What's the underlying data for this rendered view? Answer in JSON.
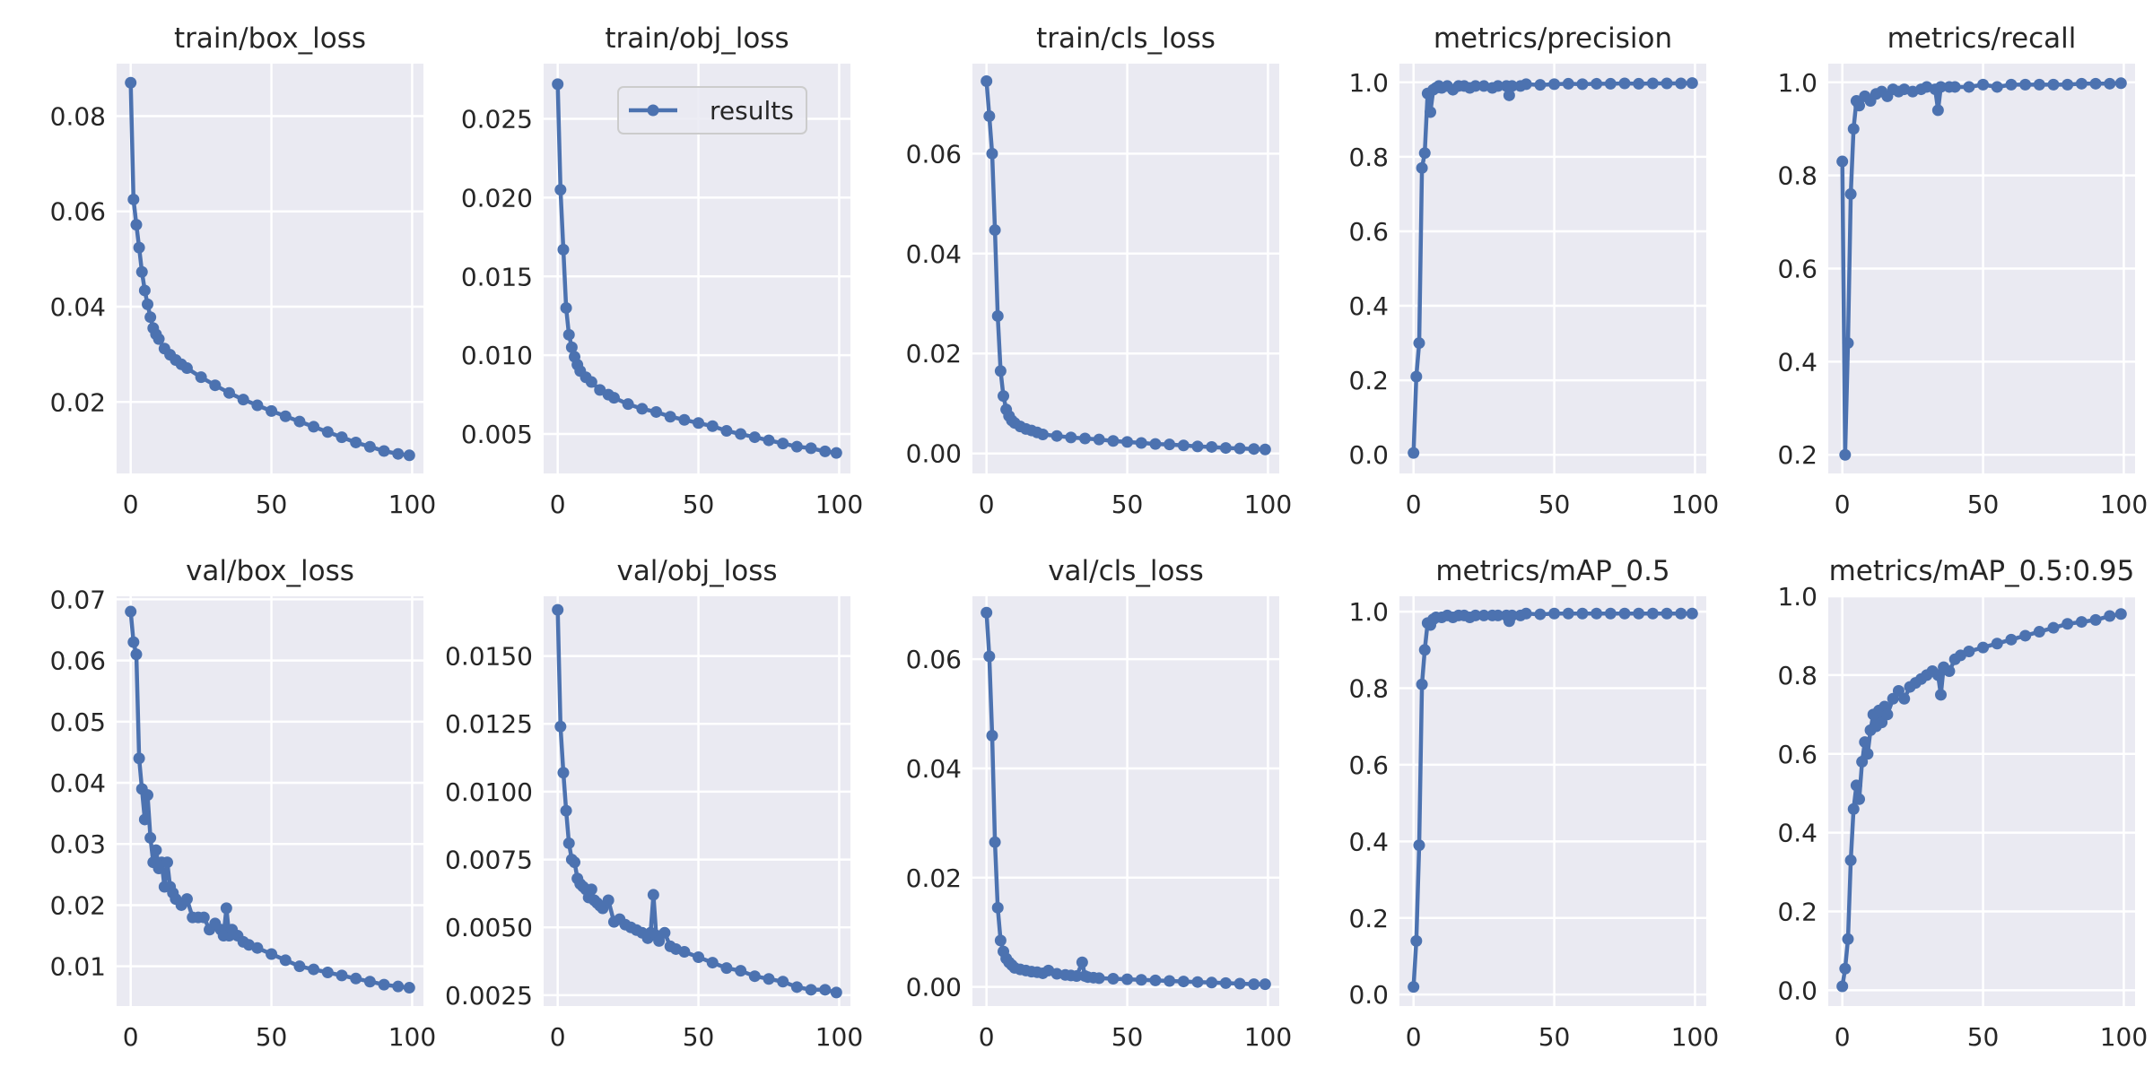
{
  "style": {
    "line_color": "#4c72b0",
    "panel_bg": "#eaeaf2",
    "grid_color": "#ffffff",
    "text_color": "#262626"
  },
  "legend": {
    "label": "results",
    "panel": 1
  },
  "chart_data": [
    {
      "type": "line",
      "title": "train/box_loss",
      "xlim": [
        -5,
        104
      ],
      "ylim": [
        0.005,
        0.091
      ],
      "xticks": [
        0,
        50,
        100
      ],
      "yticks": [
        0.02,
        0.04,
        0.06,
        0.08
      ],
      "ytick_labels": [
        "0.02",
        "0.04",
        "0.06",
        "0.08"
      ],
      "grid": true,
      "series": [
        {
          "label": "results",
          "x": [
            0,
            1,
            2,
            3,
            4,
            5,
            6,
            7,
            8,
            9,
            10,
            12,
            14,
            16,
            18,
            20,
            25,
            30,
            35,
            40,
            45,
            50,
            55,
            60,
            65,
            70,
            75,
            80,
            85,
            90,
            95,
            99
          ],
          "y": [
            0.087,
            0.0625,
            0.0572,
            0.0524,
            0.0473,
            0.0434,
            0.0405,
            0.0378,
            0.0355,
            0.0342,
            0.0332,
            0.0312,
            0.0299,
            0.0288,
            0.0279,
            0.0271,
            0.0252,
            0.0235,
            0.0219,
            0.0205,
            0.0193,
            0.0181,
            0.017,
            0.0159,
            0.0148,
            0.0137,
            0.0126,
            0.0115,
            0.0106,
            0.0097,
            0.0091,
            0.0088
          ]
        }
      ]
    },
    {
      "type": "line",
      "title": "train/obj_loss",
      "xlim": [
        -5,
        104
      ],
      "ylim": [
        0.0025,
        0.0285
      ],
      "xticks": [
        0,
        50,
        100
      ],
      "yticks": [
        0.005,
        0.01,
        0.015,
        0.02,
        0.025
      ],
      "ytick_labels": [
        "0.005",
        "0.010",
        "0.015",
        "0.020",
        "0.025"
      ],
      "grid": true,
      "series": [
        {
          "label": "results",
          "x": [
            0,
            1,
            2,
            3,
            4,
            5,
            6,
            7,
            8,
            10,
            12,
            15,
            18,
            20,
            25,
            30,
            35,
            40,
            45,
            50,
            55,
            60,
            65,
            70,
            75,
            80,
            85,
            90,
            95,
            99
          ],
          "y": [
            0.0272,
            0.0205,
            0.0167,
            0.013,
            0.0113,
            0.0105,
            0.0099,
            0.0094,
            0.009,
            0.0086,
            0.0083,
            0.0078,
            0.0075,
            0.0073,
            0.0069,
            0.0066,
            0.0064,
            0.0061,
            0.0059,
            0.0057,
            0.0055,
            0.0052,
            0.005,
            0.0048,
            0.0046,
            0.0044,
            0.0042,
            0.0041,
            0.0039,
            0.0038
          ]
        }
      ]
    },
    {
      "type": "line",
      "title": "train/cls_loss",
      "xlim": [
        -5,
        104
      ],
      "ylim": [
        -0.004,
        0.078
      ],
      "xticks": [
        0,
        50,
        100
      ],
      "yticks": [
        0.0,
        0.02,
        0.04,
        0.06
      ],
      "ytick_labels": [
        "0.00",
        "0.02",
        "0.04",
        "0.06"
      ],
      "grid": true,
      "series": [
        {
          "label": "results",
          "x": [
            0,
            1,
            2,
            3,
            4,
            5,
            6,
            7,
            8,
            9,
            10,
            12,
            14,
            16,
            18,
            20,
            25,
            30,
            35,
            40,
            45,
            50,
            55,
            60,
            65,
            70,
            75,
            80,
            85,
            90,
            95,
            99
          ],
          "y": [
            0.0745,
            0.0675,
            0.06,
            0.0447,
            0.0275,
            0.0165,
            0.0115,
            0.0088,
            0.0075,
            0.0066,
            0.0061,
            0.0054,
            0.0049,
            0.0046,
            0.0042,
            0.0038,
            0.0035,
            0.0032,
            0.003,
            0.0028,
            0.0025,
            0.0023,
            0.0021,
            0.0019,
            0.0018,
            0.0016,
            0.0014,
            0.0013,
            0.0011,
            0.001,
            0.0009,
            0.0008
          ]
        }
      ]
    },
    {
      "type": "line",
      "title": "metrics/precision",
      "xlim": [
        -5,
        104
      ],
      "ylim": [
        -0.05,
        1.05
      ],
      "xticks": [
        0,
        50,
        100
      ],
      "yticks": [
        0.0,
        0.2,
        0.4,
        0.6,
        0.8,
        1.0
      ],
      "ytick_labels": [
        "0.0",
        "0.2",
        "0.4",
        "0.6",
        "0.8",
        "1.0"
      ],
      "grid": true,
      "series": [
        {
          "label": "results",
          "x": [
            0,
            1,
            2,
            3,
            4,
            5,
            6,
            7,
            8,
            9,
            10,
            12,
            14,
            16,
            18,
            20,
            22,
            25,
            28,
            30,
            33,
            34,
            35,
            38,
            40,
            45,
            50,
            55,
            60,
            65,
            70,
            75,
            80,
            85,
            90,
            95,
            99
          ],
          "y": [
            0.005,
            0.21,
            0.3,
            0.77,
            0.81,
            0.97,
            0.92,
            0.98,
            0.985,
            0.99,
            0.985,
            0.99,
            0.98,
            0.99,
            0.99,
            0.985,
            0.99,
            0.99,
            0.985,
            0.99,
            0.99,
            0.965,
            0.99,
            0.99,
            0.995,
            0.993,
            0.995,
            0.996,
            0.995,
            0.996,
            0.996,
            0.997,
            0.996,
            0.997,
            0.997,
            0.997,
            0.998
          ]
        }
      ]
    },
    {
      "type": "line",
      "title": "metrics/recall",
      "xlim": [
        -5,
        104
      ],
      "ylim": [
        0.16,
        1.04
      ],
      "xticks": [
        0,
        50,
        100
      ],
      "yticks": [
        0.2,
        0.4,
        0.6,
        0.8,
        1.0
      ],
      "ytick_labels": [
        "0.2",
        "0.4",
        "0.6",
        "0.8",
        "1.0"
      ],
      "grid": true,
      "series": [
        {
          "label": "results",
          "x": [
            0,
            1,
            2,
            3,
            4,
            5,
            6,
            8,
            10,
            12,
            14,
            16,
            18,
            20,
            22,
            25,
            28,
            30,
            33,
            34,
            35,
            38,
            40,
            45,
            50,
            55,
            60,
            65,
            70,
            75,
            80,
            85,
            90,
            95,
            99
          ],
          "y": [
            0.83,
            0.2,
            0.44,
            0.76,
            0.9,
            0.96,
            0.95,
            0.97,
            0.96,
            0.975,
            0.98,
            0.97,
            0.985,
            0.98,
            0.985,
            0.98,
            0.985,
            0.99,
            0.985,
            0.94,
            0.99,
            0.99,
            0.99,
            0.99,
            0.995,
            0.99,
            0.995,
            0.995,
            0.995,
            0.995,
            0.995,
            0.997,
            0.997,
            0.997,
            0.998
          ]
        }
      ]
    },
    {
      "type": "line",
      "title": "val/box_loss",
      "xlim": [
        -5,
        104
      ],
      "ylim": [
        0.0035,
        0.0705
      ],
      "xticks": [
        0,
        50,
        100
      ],
      "yticks": [
        0.01,
        0.02,
        0.03,
        0.04,
        0.05,
        0.06,
        0.07
      ],
      "ytick_labels": [
        "0.01",
        "0.02",
        "0.03",
        "0.04",
        "0.05",
        "0.06",
        "0.07"
      ],
      "grid": true,
      "series": [
        {
          "label": "results",
          "x": [
            0,
            1,
            2,
            3,
            4,
            5,
            6,
            7,
            8,
            9,
            10,
            11,
            12,
            13,
            14,
            15,
            16,
            18,
            20,
            22,
            24,
            26,
            28,
            30,
            32,
            33,
            34,
            35,
            36,
            38,
            40,
            42,
            45,
            50,
            55,
            60,
            65,
            70,
            75,
            80,
            85,
            90,
            95,
            99
          ],
          "y": [
            0.068,
            0.063,
            0.061,
            0.044,
            0.039,
            0.034,
            0.038,
            0.031,
            0.027,
            0.029,
            0.026,
            0.027,
            0.023,
            0.027,
            0.023,
            0.022,
            0.021,
            0.02,
            0.021,
            0.018,
            0.018,
            0.018,
            0.016,
            0.017,
            0.016,
            0.015,
            0.0195,
            0.015,
            0.016,
            0.015,
            0.014,
            0.0135,
            0.013,
            0.012,
            0.011,
            0.01,
            0.0095,
            0.009,
            0.0085,
            0.008,
            0.0075,
            0.007,
            0.0067,
            0.0065
          ]
        }
      ]
    },
    {
      "type": "line",
      "title": "val/obj_loss",
      "xlim": [
        -5,
        104
      ],
      "ylim": [
        0.0021,
        0.0172
      ],
      "xticks": [
        0,
        50,
        100
      ],
      "yticks": [
        0.0025,
        0.005,
        0.0075,
        0.01,
        0.0125,
        0.015
      ],
      "ytick_labels": [
        "0.0025",
        "0.0050",
        "0.0075",
        "0.0100",
        "0.0125",
        "0.0150"
      ],
      "grid": true,
      "series": [
        {
          "label": "results",
          "x": [
            0,
            1,
            2,
            3,
            4,
            5,
            6,
            7,
            8,
            9,
            10,
            11,
            12,
            13,
            14,
            15,
            16,
            18,
            20,
            22,
            24,
            26,
            28,
            30,
            32,
            33,
            34,
            35,
            36,
            38,
            40,
            42,
            45,
            50,
            55,
            60,
            65,
            70,
            75,
            80,
            85,
            90,
            95,
            99
          ],
          "y": [
            0.0167,
            0.0124,
            0.0107,
            0.0093,
            0.0081,
            0.0075,
            0.0074,
            0.0068,
            0.0066,
            0.0065,
            0.0064,
            0.0061,
            0.0064,
            0.006,
            0.0059,
            0.0058,
            0.0057,
            0.006,
            0.0052,
            0.0053,
            0.0051,
            0.005,
            0.0049,
            0.0048,
            0.0046,
            0.0048,
            0.0062,
            0.0047,
            0.0045,
            0.0048,
            0.0043,
            0.0042,
            0.0041,
            0.0039,
            0.0037,
            0.0035,
            0.0034,
            0.0032,
            0.0031,
            0.003,
            0.0028,
            0.0027,
            0.0027,
            0.0026
          ]
        }
      ]
    },
    {
      "type": "line",
      "title": "val/cls_loss",
      "xlim": [
        -5,
        104
      ],
      "ylim": [
        -0.0035,
        0.0715
      ],
      "xticks": [
        0,
        50,
        100
      ],
      "yticks": [
        0.0,
        0.02,
        0.04,
        0.06
      ],
      "ytick_labels": [
        "0.00",
        "0.02",
        "0.04",
        "0.06"
      ],
      "grid": true,
      "series": [
        {
          "label": "results",
          "x": [
            0,
            1,
            2,
            3,
            4,
            5,
            6,
            7,
            8,
            9,
            10,
            12,
            14,
            16,
            18,
            20,
            22,
            25,
            28,
            30,
            32,
            34,
            35,
            36,
            38,
            40,
            45,
            50,
            55,
            60,
            65,
            70,
            75,
            80,
            85,
            90,
            95,
            99
          ],
          "y": [
            0.0685,
            0.0605,
            0.046,
            0.0265,
            0.0145,
            0.0085,
            0.0065,
            0.0052,
            0.0045,
            0.004,
            0.0035,
            0.0032,
            0.003,
            0.0028,
            0.0027,
            0.0025,
            0.003,
            0.0024,
            0.0022,
            0.0021,
            0.002,
            0.0045,
            0.002,
            0.0018,
            0.0017,
            0.0016,
            0.0015,
            0.0014,
            0.0013,
            0.0012,
            0.0011,
            0.001,
            0.0009,
            0.0008,
            0.0007,
            0.0006,
            0.0005,
            0.0005
          ]
        }
      ]
    },
    {
      "type": "line",
      "title": "metrics/mAP_0.5",
      "xlim": [
        -5,
        104
      ],
      "ylim": [
        -0.03,
        1.04
      ],
      "xticks": [
        0,
        50,
        100
      ],
      "yticks": [
        0.0,
        0.2,
        0.4,
        0.6,
        0.8,
        1.0
      ],
      "ytick_labels": [
        "0.0",
        "0.2",
        "0.4",
        "0.6",
        "0.8",
        "1.0"
      ],
      "grid": true,
      "series": [
        {
          "label": "results",
          "x": [
            0,
            1,
            2,
            3,
            4,
            5,
            6,
            7,
            8,
            10,
            12,
            14,
            16,
            18,
            20,
            22,
            25,
            28,
            30,
            33,
            34,
            35,
            38,
            40,
            45,
            50,
            55,
            60,
            65,
            70,
            75,
            80,
            85,
            90,
            95,
            99
          ],
          "y": [
            0.02,
            0.14,
            0.39,
            0.81,
            0.9,
            0.97,
            0.965,
            0.98,
            0.985,
            0.985,
            0.99,
            0.985,
            0.99,
            0.99,
            0.985,
            0.99,
            0.99,
            0.99,
            0.99,
            0.99,
            0.975,
            0.99,
            0.99,
            0.995,
            0.993,
            0.995,
            0.995,
            0.995,
            0.995,
            0.995,
            0.995,
            0.995,
            0.995,
            0.995,
            0.995,
            0.995
          ]
        }
      ]
    },
    {
      "type": "line",
      "title": "metrics/mAP_0.5:0.95",
      "xlim": [
        -5,
        104
      ],
      "ylim": [
        -0.04,
        1.0
      ],
      "xticks": [
        0,
        50,
        100
      ],
      "yticks": [
        0.0,
        0.2,
        0.4,
        0.6,
        0.8,
        1.0
      ],
      "ytick_labels": [
        "0.0",
        "0.2",
        "0.4",
        "0.6",
        "0.8",
        "1.0"
      ],
      "grid": true,
      "series": [
        {
          "label": "results",
          "x": [
            0,
            1,
            2,
            3,
            4,
            5,
            6,
            7,
            8,
            9,
            10,
            11,
            12,
            13,
            14,
            15,
            16,
            18,
            20,
            22,
            24,
            26,
            28,
            30,
            32,
            34,
            35,
            36,
            38,
            40,
            42,
            45,
            50,
            55,
            60,
            65,
            70,
            75,
            80,
            85,
            90,
            95,
            99
          ],
          "y": [
            0.01,
            0.055,
            0.13,
            0.33,
            0.46,
            0.52,
            0.485,
            0.58,
            0.63,
            0.6,
            0.66,
            0.7,
            0.67,
            0.71,
            0.68,
            0.72,
            0.7,
            0.74,
            0.76,
            0.74,
            0.77,
            0.78,
            0.79,
            0.8,
            0.81,
            0.8,
            0.75,
            0.82,
            0.81,
            0.84,
            0.85,
            0.86,
            0.87,
            0.88,
            0.89,
            0.9,
            0.91,
            0.92,
            0.93,
            0.935,
            0.94,
            0.95,
            0.955
          ]
        }
      ]
    }
  ]
}
